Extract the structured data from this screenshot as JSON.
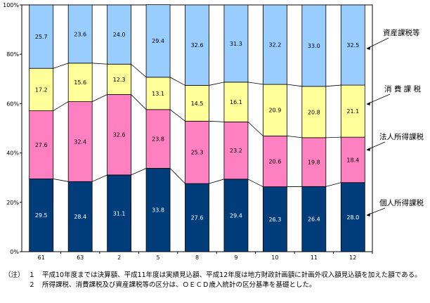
{
  "chart_data": {
    "type": "bar",
    "stacked": true,
    "percent": true,
    "categories": [
      "61",
      "63",
      "2",
      "5",
      "8",
      "9",
      "10",
      "11",
      "12"
    ],
    "series": [
      {
        "name": "個人所得課税",
        "color": "#003d7a",
        "values": [
          29.5,
          28.4,
          31.1,
          33.8,
          27.6,
          29.4,
          26.3,
          26.4,
          28.0
        ]
      },
      {
        "name": "法人所得課税",
        "color": "#ff80c0",
        "values": [
          27.6,
          32.4,
          32.6,
          23.8,
          25.3,
          23.2,
          20.6,
          19.8,
          18.4
        ]
      },
      {
        "name": "消 費 課 税",
        "color": "#ffff99",
        "values": [
          17.2,
          15.6,
          12.3,
          13.1,
          14.5,
          16.1,
          20.9,
          20.8,
          21.1
        ]
      },
      {
        "name": "資産課税等",
        "color": "#99ccff",
        "values": [
          25.7,
          23.6,
          24.0,
          29.4,
          32.6,
          31.3,
          32.2,
          33.0,
          32.5
        ]
      }
    ],
    "y_ticks": [
      "0%",
      "20%",
      "40%",
      "60%",
      "80%",
      "100%"
    ],
    "ylim": [
      0,
      100
    ],
    "grid": false,
    "legend": "right, labels with arrows"
  },
  "notes": {
    "head": "（注）",
    "items": [
      {
        "num": "１",
        "text": "平成10年度までは決算額、平成11年度は実績見込額、平成12年度は地方財政計画額に計画外収入額見込額を加えた額である。"
      },
      {
        "num": "２",
        "text": "所得課税、消費課税及び資産課税等の区分は、ＯＥＣＤ歳入統計の区分基準を基礎とした。"
      }
    ]
  }
}
